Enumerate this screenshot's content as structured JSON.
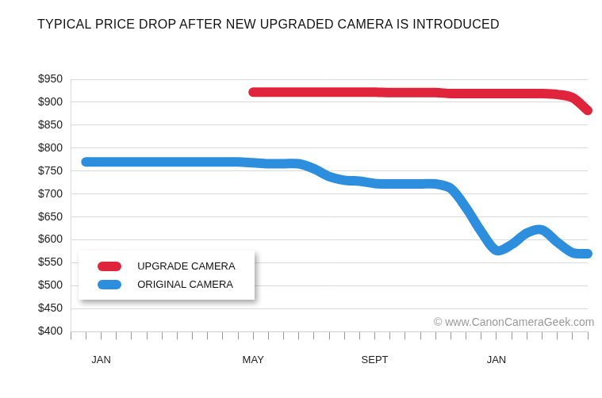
{
  "chart_data": {
    "type": "line",
    "title": "TYPICAL PRICE DROP AFTER NEW UPGRADED CAMERA IS INTRODUCED",
    "annotation": "© www.CanonCameraGeek.com",
    "categories": [
      null,
      null,
      "JAN",
      null,
      null,
      null,
      null,
      null,
      null,
      null,
      null,
      null,
      "MAY",
      null,
      null,
      null,
      null,
      null,
      null,
      null,
      "SEPT",
      null,
      null,
      null,
      null,
      null,
      null,
      null,
      "JAN",
      null,
      null,
      null,
      null,
      null,
      null
    ],
    "series": [
      {
        "name": "UPGRADE CAMERA",
        "color": "#e0243b",
        "values": [
          null,
          null,
          null,
          null,
          null,
          null,
          null,
          null,
          null,
          null,
          null,
          null,
          922,
          922,
          922,
          922,
          922,
          922,
          922,
          922,
          922,
          921,
          921,
          921,
          921,
          919,
          919,
          919,
          919,
          919,
          919,
          919,
          917,
          910,
          882
        ]
      },
      {
        "name": "ORIGINAL CAMERA",
        "color": "#2e8ede",
        "values": [
          null,
          770,
          770,
          770,
          770,
          770,
          770,
          770,
          770,
          770,
          770,
          770,
          768,
          766,
          766,
          766,
          755,
          738,
          730,
          728,
          723,
          722,
          722,
          722,
          722,
          712,
          670,
          618,
          577,
          590,
          615,
          622,
          595,
          572,
          570
        ]
      }
    ],
    "ylim": [
      400,
      950
    ],
    "yticks": [
      {
        "value": 400,
        "label": "$400"
      },
      {
        "value": 450,
        "label": "$450"
      },
      {
        "value": 500,
        "label": "$500"
      },
      {
        "value": 550,
        "label": "$550"
      },
      {
        "value": 600,
        "label": "$600"
      },
      {
        "value": 650,
        "label": "$650"
      },
      {
        "value": 700,
        "label": "$700"
      },
      {
        "value": 750,
        "label": "$750"
      },
      {
        "value": 800,
        "label": "$800"
      },
      {
        "value": 850,
        "label": "$850"
      },
      {
        "value": 900,
        "label": "$900"
      },
      {
        "value": 950,
        "label": "$950"
      }
    ],
    "grid": true,
    "legend": "lower left"
  }
}
